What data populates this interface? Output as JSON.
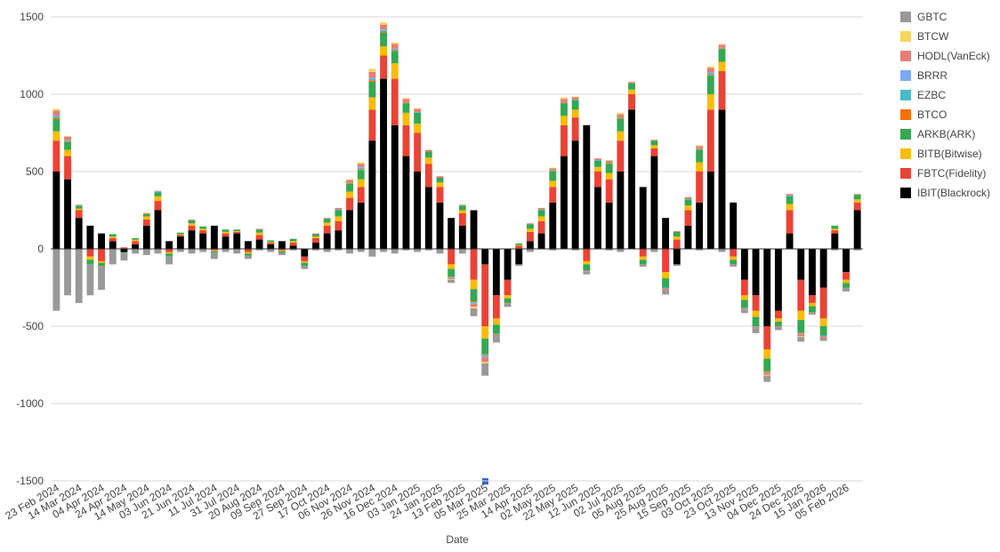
{
  "chart_data": {
    "type": "bar",
    "stacked": true,
    "x_label": "Date",
    "ylim": [
      -1500,
      1500
    ],
    "yticks": [
      -1500,
      -1000,
      -500,
      0,
      500,
      1000,
      1500
    ],
    "grid": true,
    "legend": "right",
    "categories": [
      "23 Feb 2024",
      null,
      "14 Mar 2024",
      null,
      "04 Apr 2024",
      null,
      "24 Apr 2024",
      null,
      "14 May 2024",
      null,
      "03 Jun 2024",
      null,
      "21 Jun 2024",
      null,
      "11 Jul 2024",
      null,
      "31 Jul 2024",
      null,
      "20 Aug 2024",
      null,
      "09 Sep 2024",
      null,
      "27 Sep 2024",
      null,
      "17 Oct 2024",
      null,
      "06 Nov 2024",
      null,
      "26 Nov 2024",
      null,
      "16 Dec 2024",
      null,
      "03 Jan 2025",
      null,
      "24 Jan 2025",
      null,
      "13 Feb 2025",
      null,
      "05 Mar 2025",
      null,
      "25 Mar 2025",
      null,
      "14 Apr 2025",
      null,
      "02 May 2025",
      null,
      "22 May 2025",
      null,
      "12 Jun 2025",
      null,
      "02 Jul 2025",
      null,
      "05 Aug 2025",
      null,
      "25 Aug 2025",
      null,
      "15 Sep 2025",
      null,
      "03 Oct 2025",
      null,
      "23 Oct 2025",
      null,
      "13 Nov 2025",
      null,
      "04 Dec 2025",
      null,
      "24 Dec 2025",
      null,
      "15 Jan 2026",
      null,
      "05 Feb 2026",
      null
    ],
    "series": [
      {
        "name": "GBTC",
        "color": "#999999",
        "values": [
          -400,
          -300,
          -350,
          -200,
          -150,
          -100,
          -50,
          -30,
          -40,
          -30,
          -50,
          -20,
          -30,
          -20,
          -40,
          -20,
          -30,
          -20,
          -10,
          -20,
          -15,
          -10,
          -20,
          -10,
          -20,
          -10,
          -30,
          -20,
          -50,
          -20,
          -30,
          -10,
          -20,
          -10,
          -30,
          -20,
          -30,
          -50,
          -80,
          -40,
          -20,
          -10,
          -20,
          0,
          -10,
          0,
          -10,
          -20,
          0,
          -10,
          -20,
          0,
          -10,
          -20,
          -30,
          -10,
          0,
          -10,
          0,
          -20,
          -10,
          -20,
          -30,
          -40,
          -20,
          0,
          -30,
          -10,
          -20,
          -10,
          -20,
          -10
        ]
      },
      {
        "name": "BTCW",
        "color": "#f6d55c",
        "values": [
          10,
          5,
          0,
          0,
          0,
          0,
          0,
          0,
          5,
          0,
          0,
          0,
          0,
          0,
          0,
          0,
          0,
          0,
          0,
          0,
          0,
          0,
          0,
          0,
          0,
          0,
          5,
          10,
          20,
          15,
          10,
          5,
          5,
          0,
          0,
          -5,
          0,
          -10,
          -10,
          0,
          0,
          0,
          0,
          0,
          5,
          10,
          5,
          0,
          0,
          5,
          10,
          0,
          0,
          0,
          0,
          0,
          0,
          5,
          10,
          5,
          0,
          0,
          0,
          -5,
          0,
          0,
          -5,
          0,
          0,
          0,
          0,
          0
        ]
      },
      {
        "name": "HODL(VanEck)",
        "color": "#e67c73",
        "values": [
          30,
          20,
          5,
          0,
          -5,
          0,
          0,
          0,
          5,
          5,
          0,
          0,
          5,
          0,
          0,
          0,
          0,
          0,
          5,
          0,
          0,
          0,
          0,
          5,
          5,
          10,
          15,
          20,
          40,
          30,
          30,
          20,
          20,
          10,
          10,
          -10,
          5,
          -20,
          -30,
          -10,
          -5,
          0,
          5,
          10,
          10,
          20,
          15,
          -5,
          10,
          10,
          20,
          10,
          -5,
          5,
          -10,
          5,
          10,
          15,
          30,
          20,
          -5,
          -10,
          -10,
          -15,
          -5,
          10,
          -15,
          -5,
          -10,
          0,
          -5,
          5
        ]
      },
      {
        "name": "BRRR",
        "color": "#7baaf7",
        "values": [
          5,
          5,
          0,
          0,
          0,
          0,
          0,
          0,
          0,
          0,
          0,
          0,
          0,
          0,
          0,
          0,
          0,
          0,
          0,
          0,
          0,
          0,
          0,
          0,
          0,
          0,
          0,
          5,
          5,
          5,
          5,
          0,
          0,
          0,
          0,
          0,
          0,
          -5,
          -5,
          0,
          0,
          0,
          0,
          0,
          0,
          0,
          0,
          0,
          0,
          0,
          0,
          0,
          0,
          0,
          0,
          0,
          0,
          0,
          5,
          0,
          0,
          0,
          0,
          0,
          0,
          0,
          0,
          0,
          0,
          0,
          0,
          0
        ]
      },
      {
        "name": "EZBC",
        "color": "#46bdc6",
        "values": [
          10,
          5,
          0,
          0,
          0,
          0,
          0,
          0,
          0,
          5,
          0,
          0,
          0,
          0,
          0,
          0,
          0,
          0,
          0,
          0,
          0,
          0,
          0,
          0,
          0,
          5,
          5,
          10,
          10,
          10,
          5,
          5,
          5,
          0,
          0,
          -5,
          0,
          -5,
          -10,
          -5,
          0,
          0,
          0,
          5,
          5,
          5,
          5,
          0,
          5,
          5,
          5,
          0,
          0,
          0,
          -5,
          0,
          5,
          5,
          10,
          5,
          0,
          -5,
          -5,
          -5,
          0,
          5,
          -5,
          0,
          -5,
          0,
          0,
          0
        ]
      },
      {
        "name": "BTCO",
        "color": "#ff6d01",
        "values": [
          10,
          5,
          0,
          0,
          0,
          0,
          0,
          0,
          0,
          0,
          0,
          0,
          0,
          0,
          0,
          0,
          0,
          0,
          0,
          0,
          0,
          0,
          0,
          0,
          0,
          0,
          5,
          5,
          10,
          5,
          5,
          5,
          0,
          0,
          0,
          0,
          0,
          -5,
          -5,
          0,
          0,
          0,
          0,
          0,
          5,
          5,
          0,
          0,
          0,
          5,
          5,
          0,
          0,
          0,
          0,
          0,
          0,
          5,
          5,
          5,
          0,
          0,
          0,
          -5,
          0,
          0,
          -5,
          0,
          0,
          0,
          0,
          0
        ]
      },
      {
        "name": "ARKB(ARK)",
        "color": "#34a853",
        "values": [
          80,
          50,
          20,
          -30,
          -20,
          15,
          -5,
          10,
          15,
          25,
          -20,
          10,
          20,
          15,
          -10,
          15,
          10,
          -15,
          20,
          10,
          -10,
          15,
          -20,
          15,
          25,
          40,
          50,
          60,
          100,
          90,
          80,
          60,
          70,
          40,
          30,
          -50,
          30,
          -80,
          -100,
          -60,
          -30,
          10,
          30,
          40,
          60,
          80,
          60,
          -40,
          40,
          60,
          80,
          40,
          -30,
          30,
          -60,
          30,
          40,
          80,
          120,
          80,
          -30,
          -50,
          -60,
          -80,
          -30,
          50,
          -80,
          -40,
          -60,
          20,
          -30,
          30
        ]
      },
      {
        "name": "BITB(Bitwise)",
        "color": "#fbbc04",
        "values": [
          60,
          40,
          10,
          -20,
          -10,
          10,
          0,
          10,
          20,
          30,
          -10,
          5,
          15,
          10,
          -5,
          10,
          5,
          -10,
          15,
          5,
          -5,
          10,
          -10,
          10,
          20,
          30,
          40,
          50,
          80,
          60,
          100,
          80,
          60,
          40,
          30,
          -30,
          20,
          -60,
          -80,
          -40,
          -20,
          5,
          20,
          30,
          40,
          60,
          50,
          -20,
          30,
          40,
          60,
          30,
          -20,
          20,
          -40,
          20,
          30,
          60,
          100,
          60,
          -20,
          -30,
          -40,
          -60,
          -20,
          40,
          -60,
          -20,
          -50,
          10,
          -20,
          20
        ]
      },
      {
        "name": "FBTC(Fidelity)",
        "color": "#ea4335",
        "values": [
          200,
          150,
          50,
          -50,
          -80,
          20,
          10,
          20,
          40,
          60,
          -20,
          10,
          30,
          20,
          -10,
          20,
          10,
          -20,
          30,
          10,
          -10,
          20,
          -30,
          30,
          50,
          60,
          80,
          100,
          200,
          150,
          300,
          200,
          250,
          150,
          100,
          -100,
          80,
          -200,
          -400,
          -150,
          -100,
          20,
          60,
          80,
          100,
          200,
          150,
          -80,
          100,
          150,
          200,
          100,
          -50,
          50,
          -150,
          60,
          100,
          200,
          400,
          250,
          -50,
          -100,
          -100,
          -150,
          -50,
          150,
          -200,
          -50,
          -200,
          20,
          -50,
          50
        ]
      },
      {
        "name": "IBIT(Blackrock)",
        "color": "#000000",
        "values": [
          500,
          450,
          200,
          150,
          100,
          50,
          -20,
          30,
          150,
          250,
          50,
          80,
          120,
          100,
          150,
          80,
          100,
          50,
          60,
          30,
          50,
          20,
          -50,
          40,
          100,
          120,
          250,
          300,
          700,
          1100,
          800,
          600,
          500,
          400,
          300,
          200,
          150,
          250,
          -100,
          -300,
          -200,
          -100,
          50,
          100,
          300,
          600,
          700,
          800,
          400,
          300,
          500,
          900,
          400,
          600,
          200,
          -100,
          150,
          300,
          500,
          900,
          300,
          -200,
          -300,
          -500,
          -400,
          100,
          -200,
          -300,
          -250,
          100,
          -150,
          250
        ]
      }
    ]
  }
}
